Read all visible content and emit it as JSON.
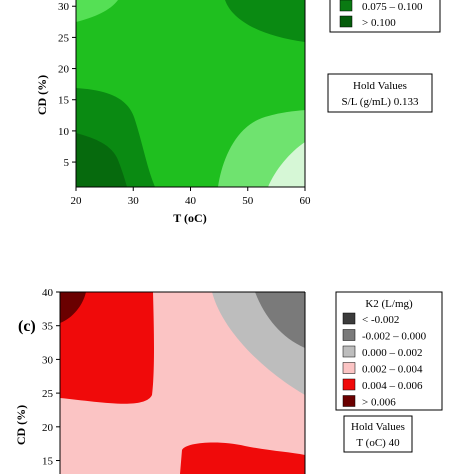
{
  "chart_data": [
    {
      "type": "heatmap",
      "subtype": "contour",
      "xlabel": "T (oC)",
      "ylabel": "CD (%)",
      "x_ticks": [
        "20",
        "30",
        "40",
        "50",
        "60"
      ],
      "y_ticks": [
        "5",
        "10",
        "15",
        "20",
        "25",
        "30"
      ],
      "xlim": [
        20,
        60
      ],
      "ylim": [
        1,
        31
      ],
      "legend": {
        "entries": [
          {
            "label": "0.075  –  0.100",
            "color": "#0a7a12"
          },
          {
            "label": ">  0.100",
            "color": "#055c0b"
          }
        ]
      },
      "hold_values": {
        "title": "Hold Values",
        "text": "S/L (g/mL)  0.133"
      },
      "colors": {
        "base": "#1fbf1f",
        "dark": "#0a8a12",
        "darker": "#066a0d",
        "light": "#6fe36f",
        "lighter": "#d6f7d6",
        "upper_left": "#55e055"
      }
    },
    {
      "type": "heatmap",
      "subtype": "contour",
      "panel_label": "(c)",
      "xlabel": "",
      "ylabel": "CD (%)",
      "y_ticks": [
        "15",
        "20",
        "25",
        "30",
        "35",
        "40"
      ],
      "ylim": [
        13,
        40
      ],
      "legend": {
        "title": "K2 (L/mg)",
        "entries": [
          {
            "label": "<  -0.002",
            "color": "#3b3b3b"
          },
          {
            "label": "-0.002  –  0.000",
            "color": "#7a7a7a"
          },
          {
            "label": "0.000  –  0.002",
            "color": "#bdbdbd"
          },
          {
            "label": "0.002  –  0.004",
            "color": "#fbc4c4"
          },
          {
            "label": "0.004  –  0.006",
            "color": "#f00a0a"
          },
          {
            "label": ">  0.006",
            "color": "#6a0000"
          }
        ]
      },
      "hold_values": {
        "title": "Hold Values",
        "text": "T (oC)  40"
      }
    }
  ]
}
